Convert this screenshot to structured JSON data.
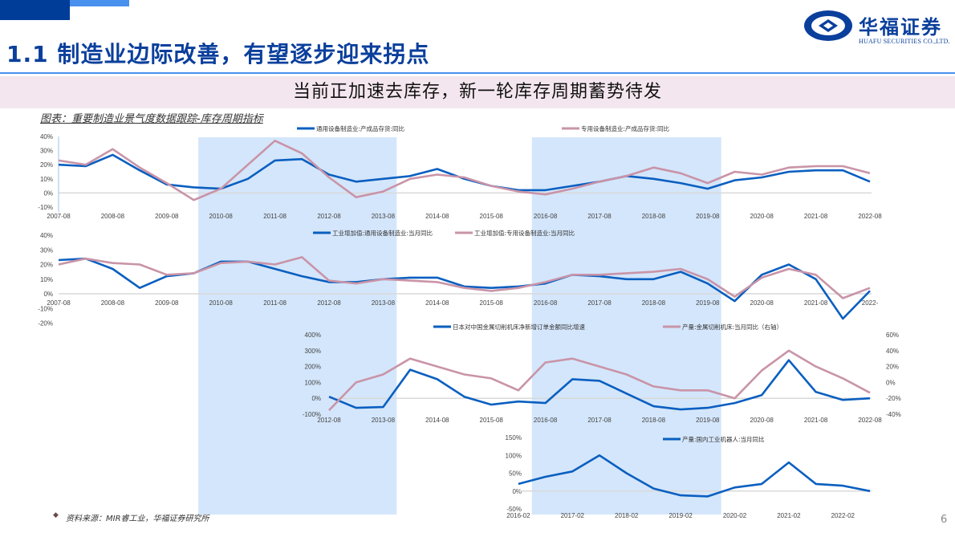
{
  "header": {
    "title": "1.1 制造业边际改善，有望逐步迎来拐点",
    "logo_cn": "华福证券",
    "logo_en": "HUAFU SECURITIES CO.,LTD."
  },
  "banner": {
    "text": "当前正加速去库存，新一轮库存周期蓄势待发"
  },
  "caption": "图表：重要制造业景气度数据跟踪-库存周期指标",
  "footer": {
    "source": "资料来源：MIR睿工业，华福证券研究所",
    "page": "6"
  },
  "colors": {
    "blue": "#0a5fc0",
    "pink": "#c994a8",
    "shade": "#d4e6fb",
    "title": "#0a3f9c"
  },
  "shaded_periods": [
    {
      "start": "2010-03",
      "end": "2013-11"
    },
    {
      "start": "2016-05",
      "end": "2019-11"
    }
  ],
  "chart_data": [
    {
      "type": "line",
      "title": "产成品存货同比",
      "x": [
        "2007-08",
        "2008-02",
        "2008-08",
        "2009-02",
        "2009-08",
        "2010-02",
        "2010-08",
        "2011-02",
        "2011-08",
        "2012-02",
        "2012-08",
        "2013-02",
        "2013-08",
        "2014-02",
        "2014-08",
        "2015-02",
        "2015-08",
        "2016-02",
        "2016-08",
        "2017-02",
        "2017-08",
        "2018-02",
        "2018-08",
        "2019-02",
        "2019-08",
        "2020-02",
        "2020-08",
        "2021-02",
        "2021-08",
        "2022-02",
        "2022-08"
      ],
      "xticks": [
        "2007-08",
        "2008-08",
        "2009-08",
        "2010-08",
        "2011-08",
        "2012-08",
        "2013-08",
        "2014-08",
        "2015-08",
        "2016-08",
        "2017-08",
        "2018-08",
        "2019-08",
        "2020-08",
        "2021-08",
        "2022-08"
      ],
      "yticks": [
        "40%",
        "30%",
        "20%",
        "10%",
        "0%",
        "-10%"
      ],
      "ylim": [
        -10,
        40
      ],
      "series": [
        {
          "name": "通用设备制造业:产成品存货:同比",
          "color": "blue",
          "values": [
            20,
            19,
            27,
            16,
            6,
            4,
            3,
            10,
            23,
            24,
            13,
            8,
            10,
            12,
            17,
            10,
            5,
            2,
            2,
            5,
            8,
            12,
            10,
            7,
            3,
            9,
            11,
            15,
            16,
            16,
            8
          ]
        },
        {
          "name": "专用设备制造业:产成品存货:同比",
          "color": "pink",
          "values": [
            23,
            20,
            31,
            18,
            7,
            -5,
            3,
            20,
            37,
            28,
            11,
            -3,
            1,
            10,
            13,
            11,
            5,
            1,
            -1,
            3,
            8,
            12,
            18,
            14,
            7,
            15,
            13,
            18,
            19,
            19,
            14
          ]
        }
      ],
      "legend_position": "top"
    },
    {
      "type": "line",
      "title": "工业增加值当月同比",
      "x": [
        "2007-08",
        "2008-02",
        "2008-08",
        "2009-02",
        "2009-08",
        "2010-02",
        "2010-08",
        "2011-02",
        "2011-08",
        "2012-02",
        "2012-08",
        "2013-02",
        "2013-08",
        "2014-02",
        "2014-08",
        "2015-02",
        "2015-08",
        "2016-02",
        "2016-08",
        "2017-02",
        "2017-08",
        "2018-02",
        "2018-08",
        "2019-02",
        "2019-08",
        "2020-02",
        "2020-08",
        "2021-02",
        "2021-08",
        "2022-02",
        "2022-08"
      ],
      "xticks": [
        "2007-08",
        "2008-08",
        "2009-08",
        "2010-08",
        "2011-08",
        "2012-08",
        "2013-08",
        "2014-08",
        "2015-08",
        "2016-08",
        "2017-08",
        "2018-08",
        "2019-08",
        "2020-08",
        "2021-08",
        "2022-"
      ],
      "yticks": [
        "40%",
        "30%",
        "20%",
        "10%",
        "0%",
        "-10%",
        "-20%"
      ],
      "ylim": [
        -20,
        40
      ],
      "series": [
        {
          "name": "工业增加值:通用设备制造业:当月同比",
          "color": "blue",
          "values": [
            23,
            24,
            17,
            4,
            12,
            14,
            22,
            22,
            17,
            12,
            8,
            8,
            10,
            11,
            11,
            5,
            4,
            5,
            7,
            13,
            12,
            10,
            10,
            15,
            7,
            -5,
            13,
            20,
            10,
            -17,
            2
          ]
        },
        {
          "name": "工业增加值:专用设备制造业:当月同比",
          "color": "pink",
          "values": [
            20,
            24,
            21,
            20,
            13,
            14,
            21,
            22,
            20,
            25,
            9,
            7,
            10,
            9,
            8,
            4,
            2,
            4,
            8,
            13,
            13,
            14,
            15,
            17,
            10,
            -2,
            11,
            17,
            13,
            -3,
            4
          ]
        }
      ],
      "legend_position": "top"
    },
    {
      "type": "line",
      "title": "金属切削机床",
      "x": [
        "2012-08",
        "2013-02",
        "2013-08",
        "2014-02",
        "2014-08",
        "2015-02",
        "2015-08",
        "2016-02",
        "2016-08",
        "2017-02",
        "2017-08",
        "2018-02",
        "2018-08",
        "2019-02",
        "2019-08",
        "2020-02",
        "2020-08",
        "2021-02",
        "2021-08",
        "2022-02",
        "2022-08"
      ],
      "xticks": [
        "2012-08",
        "2013-08",
        "2014-08",
        "2015-08",
        "2016-08",
        "2017-08",
        "2018-08",
        "2019-08",
        "2020-08",
        "2021-08",
        "2022-08"
      ],
      "yticks_left": [
        "400%",
        "300%",
        "200%",
        "100%",
        "0%",
        "-100%"
      ],
      "yticks_right": [
        "60%",
        "40%",
        "20%",
        "0%",
        "-20%",
        "-40%"
      ],
      "ylim_left": [
        -100,
        400
      ],
      "ylim_right": [
        -40,
        60
      ],
      "series": [
        {
          "name": "日本对中国金属切削机床净新增订单金额同比增速",
          "color": "blue",
          "axis": "left",
          "values": [
            10,
            -60,
            -55,
            180,
            120,
            10,
            -40,
            -20,
            -30,
            120,
            110,
            30,
            -50,
            -70,
            -60,
            -30,
            20,
            240,
            40,
            -10,
            0
          ]
        },
        {
          "name": "产量:金属切削机床:当月同比（右轴）",
          "color": "pink",
          "axis": "right",
          "values": [
            -35,
            0,
            10,
            30,
            20,
            10,
            5,
            -10,
            25,
            30,
            20,
            10,
            -5,
            -10,
            -10,
            -20,
            15,
            40,
            20,
            5,
            -13
          ]
        }
      ],
      "legend_position": "top"
    },
    {
      "type": "line",
      "title": "产量:国内工业机器人:当月同比",
      "x": [
        "2016-02",
        "2016-08",
        "2017-02",
        "2017-08",
        "2018-02",
        "2018-08",
        "2019-02",
        "2019-08",
        "2020-02",
        "2020-08",
        "2021-02",
        "2021-08",
        "2022-02",
        "2022-08"
      ],
      "xticks": [
        "2016-02",
        "2017-02",
        "2018-02",
        "2019-02",
        "2020-02",
        "2021-02",
        "2022-02"
      ],
      "yticks": [
        "150%",
        "100%",
        "50%",
        "0%",
        "-50%"
      ],
      "ylim": [
        -50,
        150
      ],
      "series": [
        {
          "name": "产量:国内工业机器人:当月同比",
          "color": "blue",
          "values": [
            20,
            40,
            55,
            100,
            50,
            7,
            -12,
            -15,
            10,
            20,
            80,
            20,
            15,
            0
          ]
        }
      ],
      "legend_position": "top"
    }
  ]
}
